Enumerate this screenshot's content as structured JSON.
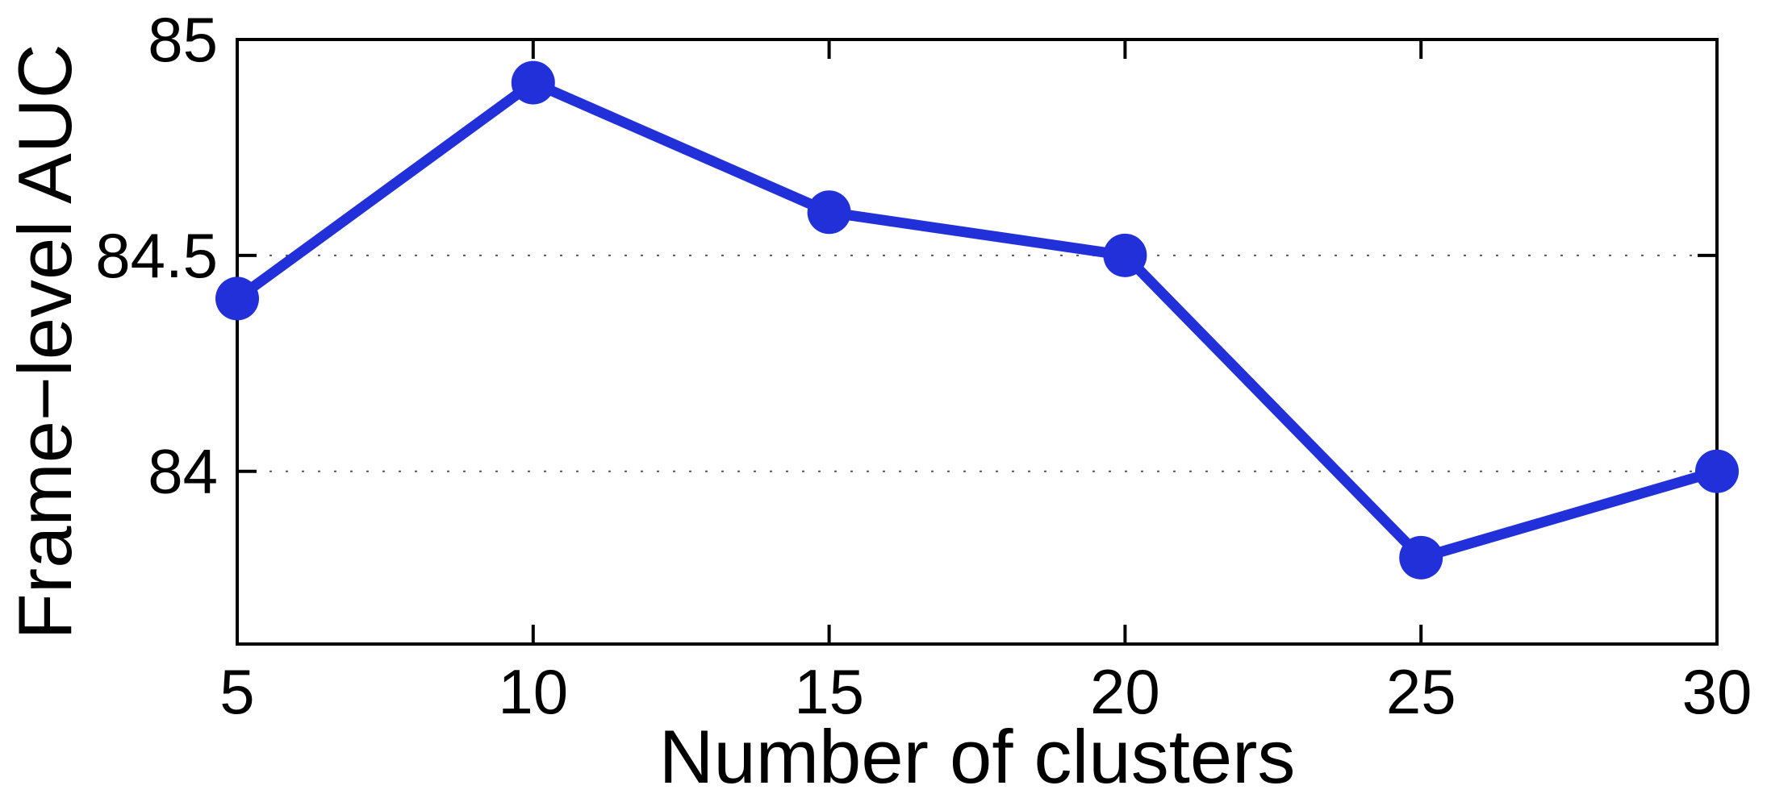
{
  "chart_data": {
    "type": "line",
    "title": "",
    "xlabel": "Number of clusters",
    "ylabel": "Frame−level AUC",
    "x": [
      5,
      10,
      15,
      20,
      25,
      30
    ],
    "series": [
      {
        "name": "Frame-level AUC",
        "values": [
          84.4,
          84.9,
          84.6,
          84.5,
          83.8,
          84.0
        ]
      }
    ],
    "xticks": [
      5,
      10,
      15,
      20,
      25,
      30
    ],
    "xtick_labels": [
      "5",
      "10",
      "15",
      "20",
      "25",
      "30"
    ],
    "yticks": [
      84,
      84.5,
      85
    ],
    "ytick_labels": [
      "84",
      "84.5",
      "85"
    ],
    "xlim": [
      5,
      30
    ],
    "ylim": [
      83.6,
      85
    ],
    "grid_y": [
      84,
      84.5
    ],
    "grid_style": "dotted",
    "legend": null,
    "line_color": "#2130d8",
    "marker": "filled-circle",
    "marker_color": "#2130d8",
    "axis_color": "#000000",
    "grid_color": "#555555",
    "background": "#ffffff"
  }
}
